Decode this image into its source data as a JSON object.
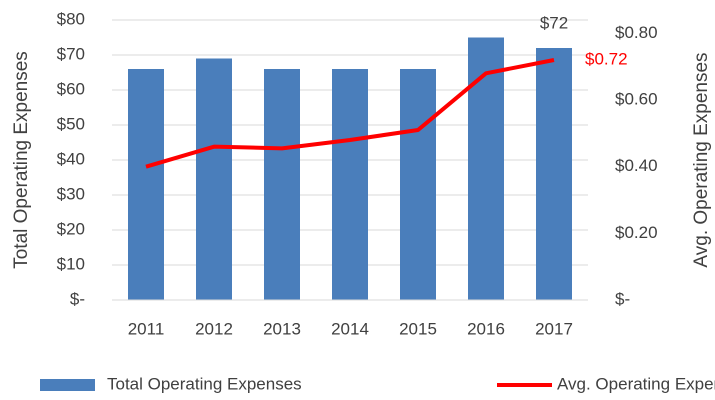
{
  "chart_data": {
    "type": "combo",
    "categories": [
      "2011",
      "2012",
      "2013",
      "2014",
      "2015",
      "2016",
      "2017"
    ],
    "series": [
      {
        "name": "Total Operating Expenses",
        "type": "bar",
        "color": "#4a7ebb",
        "axis": "y",
        "values": [
          66,
          69,
          66,
          66,
          66,
          75,
          72
        ],
        "value_labels": [
          null,
          null,
          null,
          null,
          null,
          null,
          "$72"
        ]
      },
      {
        "name": "Avg. Operating Expenses",
        "type": "line",
        "color": "#ff0000",
        "axis": "y2",
        "values": [
          0.4,
          0.46,
          0.455,
          0.48,
          0.51,
          0.68,
          0.72
        ],
        "value_labels": [
          null,
          null,
          null,
          null,
          null,
          null,
          "$0.72"
        ]
      }
    ],
    "ylabel": "Total Operating Expenses",
    "y2label": "Avg. Operating Expenses",
    "ylim": [
      0,
      80
    ],
    "yticks": [
      {
        "value": 0,
        "label": "$-"
      },
      {
        "value": 10,
        "label": "$10"
      },
      {
        "value": 20,
        "label": "$20"
      },
      {
        "value": 30,
        "label": "$30"
      },
      {
        "value": 40,
        "label": "$40"
      },
      {
        "value": 50,
        "label": "$50"
      },
      {
        "value": 60,
        "label": "$60"
      },
      {
        "value": 70,
        "label": "$70"
      },
      {
        "value": 80,
        "label": "$80"
      }
    ],
    "y2lim": [
      0,
      0.84
    ],
    "y2ticks": [
      {
        "value": 0,
        "label": "$-"
      },
      {
        "value": 0.2,
        "label": "$0.20"
      },
      {
        "value": 0.4,
        "label": "$0.40"
      },
      {
        "value": 0.6,
        "label": "$0.60"
      },
      {
        "value": 0.8,
        "label": "$0.80"
      }
    ],
    "grid": true,
    "legend": "bottom"
  }
}
